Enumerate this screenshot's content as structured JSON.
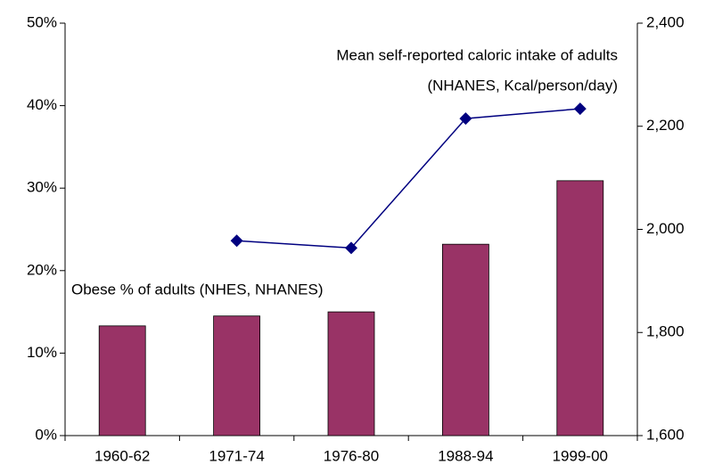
{
  "chart_data": {
    "type": "bar_line",
    "categories": [
      "1960-62",
      "1971-74",
      "1976-80",
      "1988-94",
      "1999-00"
    ],
    "series": [
      {
        "name": "Obese % of adults (NHES, NHANES)",
        "type": "bar",
        "color": "#993366",
        "values": [
          13.3,
          14.5,
          15.0,
          23.2,
          30.9
        ]
      },
      {
        "name": "Mean self-reported caloric intake of adults",
        "type": "line",
        "axis": "y2",
        "color": "#000080",
        "values": [
          null,
          1978,
          1964,
          2215,
          2234
        ]
      }
    ],
    "annotations": [
      "(NHANES, Kcal/person/day)"
    ],
    "ylim": [
      0,
      50
    ],
    "yticks": [
      {
        "value": 0,
        "label": "0%"
      },
      {
        "value": 10,
        "label": "10%"
      },
      {
        "value": 20,
        "label": "20%"
      },
      {
        "value": 30,
        "label": "30%"
      },
      {
        "value": 40,
        "label": "40%"
      },
      {
        "value": 50,
        "label": "50%"
      }
    ],
    "y2lim": [
      1600,
      2400
    ],
    "y2ticks": [
      {
        "value": 1600,
        "label": "1,600"
      },
      {
        "value": 1800,
        "label": "1,800"
      },
      {
        "value": 2000,
        "label": "2,000"
      },
      {
        "value": 2200,
        "label": "2,200"
      },
      {
        "value": 2400,
        "label": "2,400"
      }
    ]
  }
}
